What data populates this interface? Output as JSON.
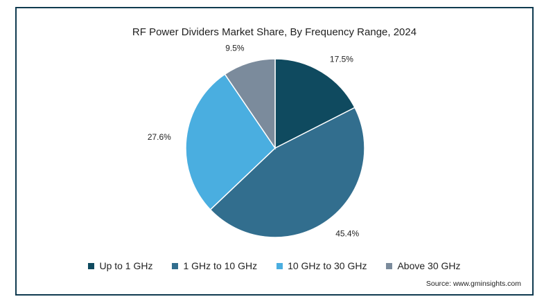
{
  "chart_data": {
    "type": "pie",
    "title": "RF Power Dividers Market Share, By Frequency Range, 2024",
    "slices": [
      {
        "label": "Up to 1 GHz",
        "value": 17.5,
        "display": "17.5%",
        "color": "#0f4a5f"
      },
      {
        "label": "1 GHz to 10 GHz",
        "value": 45.4,
        "display": "45.4%",
        "color": "#326e8e"
      },
      {
        "label": "10 GHz to 30 GHz",
        "value": 27.6,
        "display": "27.6%",
        "color": "#4aaee0"
      },
      {
        "label": "Above 30 GHz",
        "value": 9.5,
        "display": "9.5%",
        "color": "#7b8b9c"
      }
    ],
    "legend_position": "bottom"
  },
  "source": "Source: www.gminsights.com"
}
